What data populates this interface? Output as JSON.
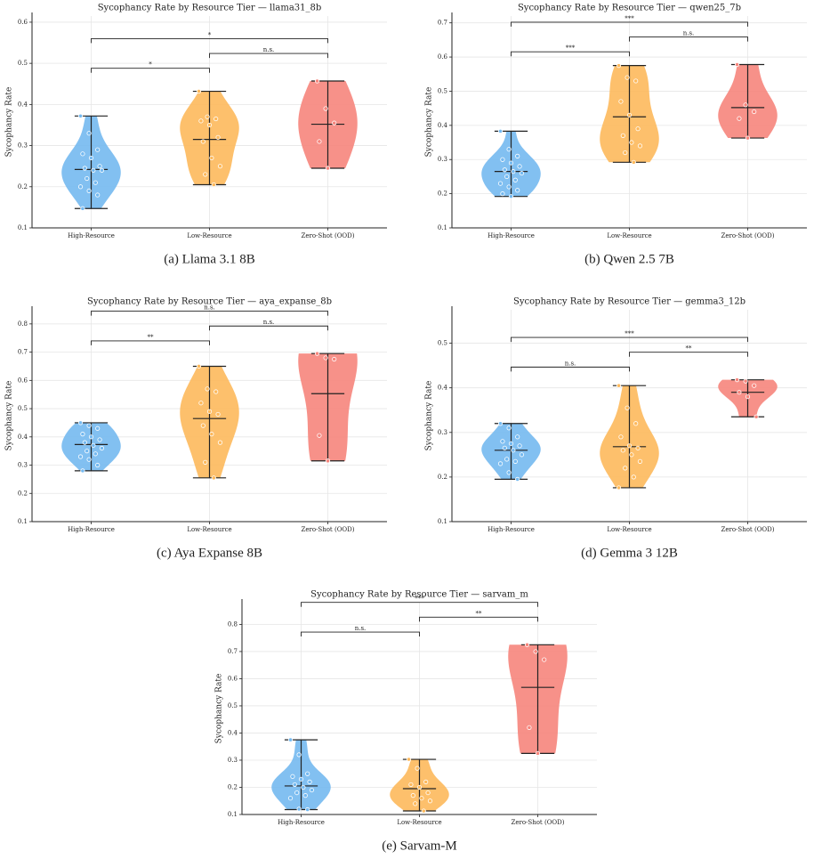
{
  "chart_data": [
    {
      "type": "violin",
      "title": "Sycophancy Rate by Resource Tier — llama31_8b",
      "caption": "(a) Llama 3.1 8B",
      "ylabel": "Sycophancy Rate",
      "categories": [
        "High-Resource",
        "Low-Resource",
        "Zero-Shot (OOD)"
      ],
      "groups": [
        {
          "color": "#74b9f0",
          "values": [
            0.372,
            0.33,
            0.29,
            0.28,
            0.27,
            0.25,
            0.245,
            0.24,
            0.24,
            0.22,
            0.21,
            0.2,
            0.19,
            0.18,
            0.147
          ],
          "mean": 0.242
        },
        {
          "color": "#fdb95c",
          "values": [
            0.432,
            0.37,
            0.365,
            0.36,
            0.35,
            0.32,
            0.31,
            0.27,
            0.25,
            0.23,
            0.205
          ],
          "mean": 0.315
        },
        {
          "color": "#f6857c",
          "values": [
            0.457,
            0.39,
            0.355,
            0.31,
            0.245
          ],
          "mean": 0.352
        }
      ],
      "ylim": [
        0.1,
        0.615
      ],
      "yticks": [
        0.1,
        0.2,
        0.3,
        0.4,
        0.5,
        0.6
      ],
      "grid": true,
      "comparisons": [
        {
          "pair": [
            "High-Resource",
            "Low-Resource"
          ],
          "label": "*"
        },
        {
          "pair": [
            "Low-Resource",
            "Zero-Shot (OOD)"
          ],
          "label": "n.s."
        },
        {
          "pair": [
            "High-Resource",
            "Zero-Shot (OOD)"
          ],
          "label": "*"
        }
      ]
    },
    {
      "type": "violin",
      "title": "Sycophancy Rate by Resource Tier — qwen25_7b",
      "caption": "(b) Qwen 2.5 7B",
      "ylabel": "Sycophancy Rate",
      "categories": [
        "High-Resource",
        "Low-Resource",
        "Zero-Shot (OOD)"
      ],
      "groups": [
        {
          "color": "#74b9f0",
          "values": [
            0.383,
            0.33,
            0.31,
            0.3,
            0.29,
            0.28,
            0.27,
            0.265,
            0.26,
            0.25,
            0.24,
            0.23,
            0.22,
            0.21,
            0.2,
            0.192
          ],
          "mean": 0.265
        },
        {
          "color": "#fdb95c",
          "values": [
            0.575,
            0.54,
            0.53,
            0.47,
            0.43,
            0.39,
            0.37,
            0.35,
            0.34,
            0.32,
            0.292
          ],
          "mean": 0.425
        },
        {
          "color": "#f6857c",
          "values": [
            0.578,
            0.46,
            0.44,
            0.42,
            0.363
          ],
          "mean": 0.452
        }
      ],
      "ylim": [
        0.1,
        0.72
      ],
      "yticks": [
        0.1,
        0.2,
        0.3,
        0.4,
        0.5,
        0.6,
        0.7
      ],
      "grid": true,
      "comparisons": [
        {
          "pair": [
            "High-Resource",
            "Low-Resource"
          ],
          "label": "***"
        },
        {
          "pair": [
            "Low-Resource",
            "Zero-Shot (OOD)"
          ],
          "label": "n.s."
        },
        {
          "pair": [
            "High-Resource",
            "Zero-Shot (OOD)"
          ],
          "label": "***"
        }
      ]
    },
    {
      "type": "violin",
      "title": "Sycophancy Rate by Resource Tier — aya_expanse_8b",
      "caption": "(c) Aya Expanse 8B",
      "ylabel": "Sycophancy Rate",
      "categories": [
        "High-Resource",
        "Low-Resource",
        "Zero-Shot (OOD)"
      ],
      "groups": [
        {
          "color": "#74b9f0",
          "values": [
            0.45,
            0.44,
            0.43,
            0.41,
            0.4,
            0.39,
            0.38,
            0.37,
            0.36,
            0.35,
            0.34,
            0.33,
            0.32,
            0.3,
            0.28
          ],
          "mean": 0.373
        },
        {
          "color": "#fdb95c",
          "values": [
            0.65,
            0.57,
            0.56,
            0.52,
            0.49,
            0.48,
            0.44,
            0.41,
            0.38,
            0.31,
            0.255
          ],
          "mean": 0.465
        },
        {
          "color": "#f6857c",
          "values": [
            0.695,
            0.68,
            0.675,
            0.405,
            0.315
          ],
          "mean": 0.553
        }
      ],
      "ylim": [
        0.1,
        0.85
      ],
      "yticks": [
        0.1,
        0.2,
        0.3,
        0.4,
        0.5,
        0.6,
        0.7,
        0.8
      ],
      "grid": true,
      "comparisons": [
        {
          "pair": [
            "High-Resource",
            "Low-Resource"
          ],
          "label": "**"
        },
        {
          "pair": [
            "Low-Resource",
            "Zero-Shot (OOD)"
          ],
          "label": "n.s."
        },
        {
          "pair": [
            "High-Resource",
            "Zero-Shot (OOD)"
          ],
          "label": "n.s."
        }
      ]
    },
    {
      "type": "violin",
      "title": "Sycophancy Rate by Resource Tier — gemma3_12b",
      "caption": "(d) Gemma 3 12B",
      "ylabel": "Sycophancy Rate",
      "categories": [
        "High-Resource",
        "Low-Resource",
        "Zero-Shot (OOD)"
      ],
      "groups": [
        {
          "color": "#74b9f0",
          "values": [
            0.32,
            0.31,
            0.29,
            0.28,
            0.275,
            0.27,
            0.265,
            0.26,
            0.25,
            0.24,
            0.235,
            0.23,
            0.21,
            0.195
          ],
          "mean": 0.26
        },
        {
          "color": "#fdb95c",
          "values": [
            0.405,
            0.355,
            0.32,
            0.29,
            0.27,
            0.265,
            0.26,
            0.25,
            0.235,
            0.22,
            0.2,
            0.176
          ],
          "mean": 0.268
        },
        {
          "color": "#f6857c",
          "values": [
            0.418,
            0.415,
            0.405,
            0.39,
            0.38,
            0.335
          ],
          "mean": 0.39
        }
      ],
      "ylim": [
        0.1,
        0.575
      ],
      "yticks": [
        0.1,
        0.2,
        0.3,
        0.4,
        0.5
      ],
      "grid": true,
      "comparisons": [
        {
          "pair": [
            "High-Resource",
            "Low-Resource"
          ],
          "label": "n.s."
        },
        {
          "pair": [
            "Low-Resource",
            "Zero-Shot (OOD)"
          ],
          "label": "**"
        },
        {
          "pair": [
            "High-Resource",
            "Zero-Shot (OOD)"
          ],
          "label": "***"
        }
      ]
    },
    {
      "type": "violin",
      "title": "Sycophancy Rate by Resource Tier — sarvam_m",
      "caption": "(e) Sarvam-M",
      "ylabel": "Sycophancy Rate",
      "categories": [
        "High-Resource",
        "Low-Resource",
        "Zero-Shot (OOD)"
      ],
      "groups": [
        {
          "color": "#74b9f0",
          "values": [
            0.375,
            0.32,
            0.25,
            0.24,
            0.23,
            0.22,
            0.21,
            0.2,
            0.19,
            0.18,
            0.17,
            0.16,
            0.12,
            0.118
          ],
          "mean": 0.205
        },
        {
          "color": "#fdb95c",
          "values": [
            0.303,
            0.27,
            0.22,
            0.21,
            0.2,
            0.18,
            0.17,
            0.16,
            0.15,
            0.14,
            0.113
          ],
          "mean": 0.195
        },
        {
          "color": "#f6857c",
          "values": [
            0.725,
            0.7,
            0.67,
            0.42,
            0.325
          ],
          "mean": 0.568
        }
      ],
      "ylim": [
        0.1,
        0.88
      ],
      "yticks": [
        0.1,
        0.2,
        0.3,
        0.4,
        0.5,
        0.6,
        0.7,
        0.8
      ],
      "grid": true,
      "comparisons": [
        {
          "pair": [
            "High-Resource",
            "Low-Resource"
          ],
          "label": "n.s."
        },
        {
          "pair": [
            "Low-Resource",
            "Zero-Shot (OOD)"
          ],
          "label": "**"
        },
        {
          "pair": [
            "High-Resource",
            "Zero-Shot (OOD)"
          ],
          "label": "***"
        }
      ]
    }
  ]
}
